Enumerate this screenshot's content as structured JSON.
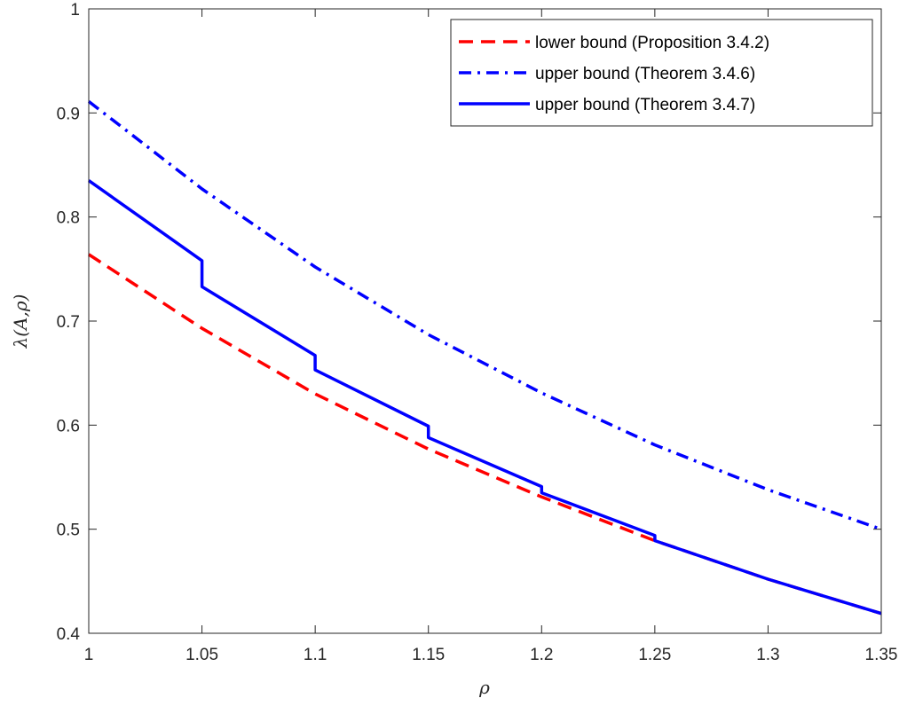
{
  "chart_data": {
    "type": "line",
    "title": "",
    "xlabel": "ρ",
    "ylabel": "λ(A,ρ)",
    "xlim": [
      1,
      1.35
    ],
    "ylim": [
      0.4,
      1
    ],
    "xticks": [
      1,
      1.05,
      1.1,
      1.15,
      1.2,
      1.25,
      1.3,
      1.35
    ],
    "xtick_labels": [
      "1",
      "1.05",
      "1.1",
      "1.15",
      "1.2",
      "1.25",
      "1.3",
      "1.35"
    ],
    "yticks": [
      0.4,
      0.5,
      0.6,
      0.7,
      0.8,
      0.9,
      1
    ],
    "ytick_labels": [
      "0.4",
      "0.5",
      "0.6",
      "0.7",
      "0.8",
      "0.9",
      "1"
    ],
    "grid": false,
    "legend_position": "top-right",
    "series": [
      {
        "name": "lower bound (Proposition 3.4.2)",
        "color": "#ff0000",
        "style": "dashed",
        "x": [
          1,
          1.05,
          1.1,
          1.15,
          1.2,
          1.25,
          1.3,
          1.35
        ],
        "y": [
          0.764,
          0.693,
          0.63,
          0.577,
          0.531,
          0.489,
          0.452,
          0.419
        ]
      },
      {
        "name": "upper bound (Theorem 3.4.6)",
        "color": "#0000ff",
        "style": "dash-dot",
        "x": [
          1,
          1.05,
          1.1,
          1.15,
          1.2,
          1.25,
          1.3,
          1.35
        ],
        "y": [
          0.911,
          0.827,
          0.752,
          0.687,
          0.631,
          0.581,
          0.538,
          0.5
        ]
      },
      {
        "name": "upper bound (Theorem 3.4.7)",
        "color": "#0000ff",
        "style": "solid",
        "x": [
          1,
          1.05,
          1.05,
          1.1,
          1.1,
          1.15,
          1.15,
          1.2,
          1.2,
          1.25,
          1.25,
          1.3,
          1.35
        ],
        "y": [
          0.835,
          0.758,
          0.733,
          0.667,
          0.653,
          0.599,
          0.588,
          0.541,
          0.535,
          0.494,
          0.489,
          0.452,
          0.419
        ]
      }
    ]
  }
}
